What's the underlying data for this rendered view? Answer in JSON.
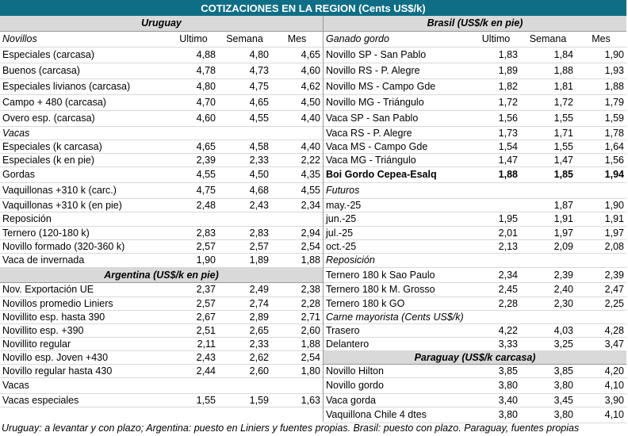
{
  "title": "COTIZACIONES EN LA REGION (Cents US$/k)",
  "left_sections": [
    {
      "title": "Uruguay",
      "rows": [
        {
          "label": "Novillos",
          "v": [
            "Ultimo",
            "Semana",
            "Mes"
          ],
          "kind": "header"
        },
        {
          "label": "Especiales (carcasa)",
          "v": [
            "4,88",
            "4,80",
            "4,65"
          ]
        },
        {
          "label": "Buenos (carcasa)",
          "v": [
            "4,78",
            "4,73",
            "4,60"
          ]
        },
        {
          "label": "Especiales livianos (carcasa)",
          "v": [
            "4,80",
            "4,75",
            "4,62"
          ]
        },
        {
          "label": "Campo + 480 (carcasa)",
          "v": [
            "4,70",
            "4,65",
            "4,50"
          ]
        },
        {
          "label": "Overo esp. (carcasa)",
          "v": [
            "4,60",
            "4,55",
            "4,40"
          ]
        },
        {
          "label": "Vacas",
          "v": [
            "",
            "",
            ""
          ],
          "kind": "sub"
        },
        {
          "label": "Especiales (k carcasa)",
          "v": [
            "4,65",
            "4,58",
            "4,40"
          ]
        },
        {
          "label": "Especiales (k en pie)",
          "v": [
            "2,39",
            "2,33",
            "2,22"
          ]
        },
        {
          "label": "Gordas",
          "v": [
            "4,55",
            "4,50",
            "4,35"
          ]
        },
        {
          "label": "Vaquillonas +310 k (carc.)",
          "v": [
            "4,75",
            "4,68",
            "4,55"
          ]
        },
        {
          "label": "Vaquillonas +310 k (en pie)",
          "v": [
            "2,48",
            "2,43",
            "2,34"
          ]
        },
        {
          "label": "Reposición",
          "v": [
            "",
            "",
            ""
          ]
        },
        {
          "label": "Ternero (120-180 k)",
          "v": [
            "2,83",
            "2,83",
            "2,94"
          ]
        },
        {
          "label": "Novillo formado (320-360 k)",
          "v": [
            "2,57",
            "2,57",
            "2,54"
          ]
        },
        {
          "label": "Vaca de invernada",
          "v": [
            "1,90",
            "1,89",
            "1,88"
          ]
        }
      ]
    },
    {
      "title": "Argentina (US$/k en pie)",
      "rows": [
        {
          "label": "Nov. Exportación UE",
          "v": [
            "2,37",
            "2,49",
            "2,38"
          ]
        },
        {
          "label": "Novillos promedio Liniers",
          "v": [
            "2,57",
            "2,74",
            "2,28"
          ]
        },
        {
          "label": "Novillito esp. hasta 390",
          "v": [
            "2,67",
            "2,89",
            "2,71"
          ]
        },
        {
          "label": "Novillito esp. +390",
          "v": [
            "2,51",
            "2,65",
            "2,60"
          ]
        },
        {
          "label": "Novillito regular",
          "v": [
            "2,11",
            "2,33",
            "1,88"
          ]
        },
        {
          "label": "Novillo esp. Joven +430",
          "v": [
            "2,43",
            "2,62",
            "2,54"
          ]
        },
        {
          "label": "Novillo regular hasta 430",
          "v": [
            "2,44",
            "2,60",
            "1,80"
          ]
        },
        {
          "label": "Vacas",
          "v": [
            "",
            "",
            ""
          ]
        },
        {
          "label": "Vacas especiales",
          "v": [
            "1,55",
            "1,59",
            "1,63"
          ]
        }
      ]
    }
  ],
  "right_sections": [
    {
      "title": "Brasil (US$/k en pie)",
      "rows": [
        {
          "label": "Ganado gordo",
          "v": [
            "Ultimo",
            "Semana",
            "Mes"
          ],
          "kind": "header"
        },
        {
          "label": "Novillo SP - San Pablo",
          "v": [
            "1,83",
            "1,84",
            "1,90"
          ]
        },
        {
          "label": "Novillo RS - P. Alegre",
          "v": [
            "1,89",
            "1,88",
            "1,93"
          ]
        },
        {
          "label": "Novillo MS - Campo Gde",
          "v": [
            "1,82",
            "1,81",
            "1,88"
          ]
        },
        {
          "label": "Novillo MG - Triángulo",
          "v": [
            "1,72",
            "1,72",
            "1,79"
          ]
        },
        {
          "label": "Vaca SP - San Pablo",
          "v": [
            "1,56",
            "1,55",
            "1,59"
          ]
        },
        {
          "label": "Vaca RS - P. Alegre",
          "v": [
            "1,73",
            "1,71",
            "1,78"
          ]
        },
        {
          "label": "Vaca MS - Campo Gde",
          "v": [
            "1,54",
            "1,55",
            "1,64"
          ]
        },
        {
          "label": "Vaca MG - Triángulo",
          "v": [
            "1,47",
            "1,47",
            "1,56"
          ]
        },
        {
          "label": "Boi Gordo Cepea-Esalq",
          "v": [
            "1,88",
            "1,85",
            "1,94"
          ],
          "kind": "bold"
        },
        {
          "label": "Futuros",
          "v": [
            "",
            "",
            ""
          ],
          "kind": "sub"
        },
        {
          "label": "may.-25",
          "v": [
            "",
            "1,87",
            "1,90"
          ]
        },
        {
          "label": "jun.-25",
          "v": [
            "1,95",
            "1,91",
            "1,91"
          ]
        },
        {
          "label": "jul.-25",
          "v": [
            "2,01",
            "1,97",
            "1,97"
          ]
        },
        {
          "label": "oct.-25",
          "v": [
            "2,13",
            "2,09",
            "2,08"
          ]
        },
        {
          "label": "Reposición",
          "v": [
            "",
            "",
            ""
          ],
          "kind": "sub"
        },
        {
          "label": "Ternero 180 k Sao Paulo",
          "v": [
            "2,34",
            "2,39",
            "2,39"
          ]
        },
        {
          "label": "Ternero 180 k M. Grosso",
          "v": [
            "2,45",
            "2,40",
            "2,47"
          ]
        },
        {
          "label": "Ternero 180 k GO",
          "v": [
            "2,28",
            "2,30",
            "2,25"
          ]
        },
        {
          "label": "Carne mayorista (Cents US$/k)",
          "v": [
            "",
            "",
            ""
          ],
          "kind": "sub"
        },
        {
          "label": "Trasero",
          "v": [
            "4,22",
            "4,03",
            "4,28"
          ]
        },
        {
          "label": "Delantero",
          "v": [
            "3,33",
            "3,25",
            "3,47"
          ]
        }
      ]
    },
    {
      "title": "Paraguay (US$/k carcasa)",
      "rows": [
        {
          "label": "Novillo Hilton",
          "v": [
            "3,85",
            "3,85",
            "4,20"
          ]
        },
        {
          "label": "Novillo gordo",
          "v": [
            "3,80",
            "3,80",
            "4,10"
          ]
        },
        {
          "label": "Vaca gorda",
          "v": [
            "3,40",
            "3,45",
            "3,90"
          ]
        },
        {
          "label": "Vaquillona Chile 4 dtes",
          "v": [
            "3,80",
            "3,80",
            "4,10"
          ]
        }
      ]
    }
  ],
  "footnote": "Uruguay: a levantar y con plazo; Argentina: puesto en Liniers y fuentes propias. Brasil: puesto con plazo. Paraguay, fuentes propias"
}
